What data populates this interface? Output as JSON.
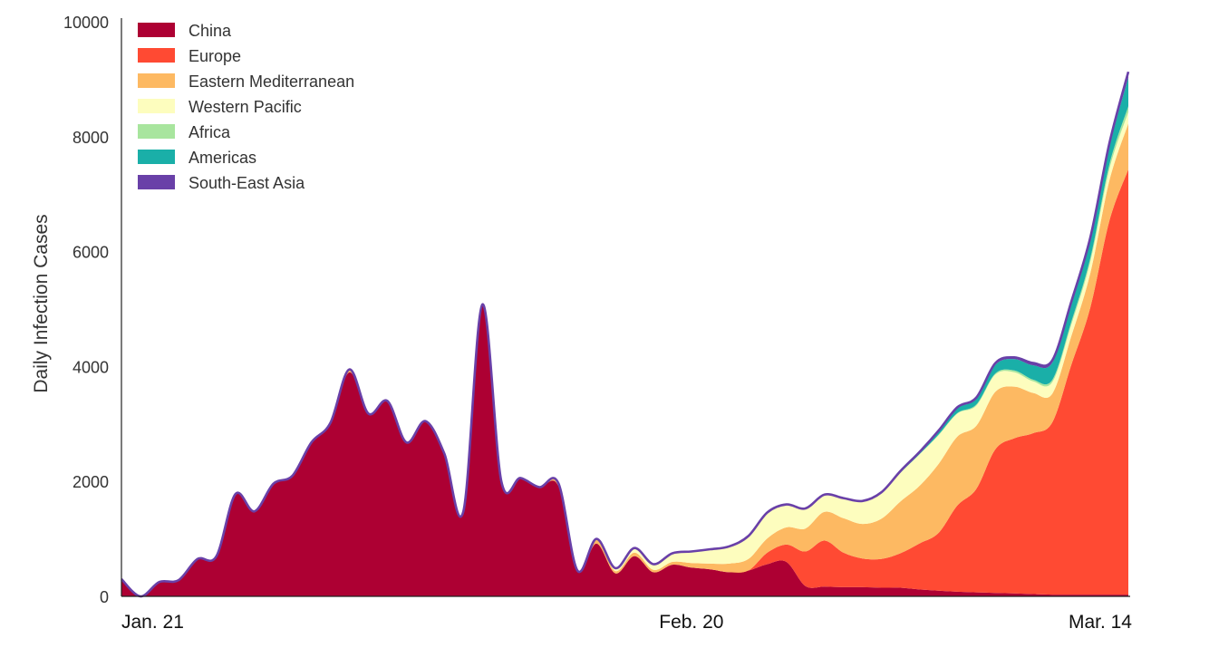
{
  "chart_data": {
    "type": "area",
    "stacked": true,
    "ylabel": "Daily Infection Cases",
    "xlabel": "",
    "ylim": [
      0,
      10000
    ],
    "yticks": [
      0,
      2000,
      4000,
      6000,
      8000,
      10000
    ],
    "xtick_labels": [
      {
        "label": "Jan. 21",
        "day": 0
      },
      {
        "label": "Feb. 20",
        "day": 30
      },
      {
        "label": "Mar. 14",
        "day": 53
      }
    ],
    "x": [
      0,
      1,
      2,
      3,
      4,
      5,
      6,
      7,
      8,
      9,
      10,
      11,
      12,
      13,
      14,
      15,
      16,
      17,
      18,
      19,
      20,
      21,
      22,
      23,
      24,
      25,
      26,
      27,
      28,
      29,
      30,
      31,
      32,
      33,
      34,
      35,
      36,
      37,
      38,
      39,
      40,
      41,
      42,
      43,
      44,
      45,
      46,
      47,
      48,
      49,
      50,
      51,
      52,
      53
    ],
    "grid": false,
    "legend_position": "top-left",
    "series": [
      {
        "name": "China",
        "color": "#ad0033",
        "values": [
          300,
          0,
          250,
          280,
          650,
          700,
          1780,
          1480,
          1960,
          2100,
          2680,
          3020,
          3900,
          3180,
          3400,
          2680,
          3050,
          2480,
          1480,
          5080,
          2000,
          2060,
          1900,
          1920,
          450,
          920,
          400,
          700,
          420,
          550,
          500,
          470,
          420,
          450,
          560,
          600,
          180,
          170,
          160,
          160,
          150,
          150,
          120,
          100,
          80,
          70,
          60,
          50,
          40,
          30,
          30,
          30,
          30,
          30
        ]
      },
      {
        "name": "Europe",
        "color": "#ff4a33",
        "values": [
          0,
          0,
          0,
          0,
          0,
          0,
          0,
          0,
          0,
          0,
          0,
          0,
          0,
          0,
          0,
          0,
          0,
          0,
          0,
          0,
          0,
          0,
          0,
          0,
          0,
          0,
          0,
          0,
          0,
          0,
          0,
          0,
          0,
          0,
          200,
          300,
          600,
          800,
          600,
          500,
          500,
          600,
          800,
          1000,
          1500,
          1800,
          2500,
          2700,
          2800,
          3000,
          4000,
          5000,
          6500,
          7400
        ]
      },
      {
        "name": "Eastern Mediterranean",
        "color": "#fdb962",
        "values": [
          0,
          0,
          0,
          0,
          0,
          0,
          0,
          0,
          0,
          0,
          0,
          0,
          50,
          0,
          0,
          0,
          0,
          0,
          0,
          0,
          0,
          0,
          0,
          50,
          0,
          80,
          40,
          60,
          40,
          50,
          80,
          100,
          150,
          200,
          250,
          300,
          400,
          500,
          600,
          600,
          700,
          900,
          1000,
          1200,
          1200,
          1100,
          1000,
          900,
          700,
          500,
          500,
          600,
          700,
          800
        ]
      },
      {
        "name": "Western Pacific",
        "color": "#fdfdbe",
        "values": [
          0,
          0,
          0,
          0,
          0,
          0,
          0,
          0,
          0,
          0,
          0,
          0,
          0,
          0,
          0,
          0,
          0,
          0,
          0,
          0,
          0,
          0,
          0,
          0,
          0,
          0,
          50,
          80,
          100,
          150,
          200,
          250,
          300,
          400,
          450,
          400,
          350,
          300,
          350,
          400,
          450,
          500,
          550,
          500,
          400,
          350,
          300,
          250,
          200,
          200,
          200,
          200,
          200,
          200
        ]
      },
      {
        "name": "Africa",
        "color": "#a8e59e",
        "values": [
          0,
          0,
          0,
          0,
          0,
          0,
          0,
          0,
          0,
          0,
          0,
          0,
          0,
          0,
          0,
          0,
          0,
          0,
          0,
          0,
          0,
          0,
          0,
          0,
          0,
          0,
          0,
          0,
          0,
          0,
          0,
          0,
          0,
          0,
          0,
          0,
          0,
          0,
          0,
          0,
          0,
          0,
          0,
          10,
          10,
          20,
          20,
          30,
          30,
          40,
          50,
          60,
          80,
          100
        ]
      },
      {
        "name": "Americas",
        "color": "#1aafa8",
        "values": [
          0,
          0,
          0,
          0,
          0,
          0,
          0,
          0,
          0,
          0,
          0,
          0,
          0,
          0,
          0,
          0,
          0,
          0,
          0,
          0,
          0,
          0,
          0,
          0,
          0,
          0,
          0,
          0,
          0,
          0,
          0,
          0,
          0,
          0,
          0,
          0,
          0,
          0,
          0,
          0,
          10,
          20,
          30,
          50,
          80,
          100,
          150,
          200,
          250,
          300,
          300,
          300,
          300,
          500
        ]
      },
      {
        "name": "South-East Asia",
        "color": "#6940a8",
        "values": [
          0,
          0,
          0,
          0,
          0,
          0,
          0,
          0,
          0,
          0,
          0,
          0,
          0,
          0,
          0,
          0,
          0,
          0,
          0,
          0,
          0,
          0,
          0,
          0,
          0,
          0,
          0,
          0,
          0,
          0,
          0,
          0,
          0,
          0,
          0,
          0,
          0,
          0,
          0,
          0,
          0,
          10,
          10,
          20,
          20,
          20,
          30,
          30,
          40,
          40,
          50,
          60,
          70,
          100
        ]
      }
    ]
  }
}
